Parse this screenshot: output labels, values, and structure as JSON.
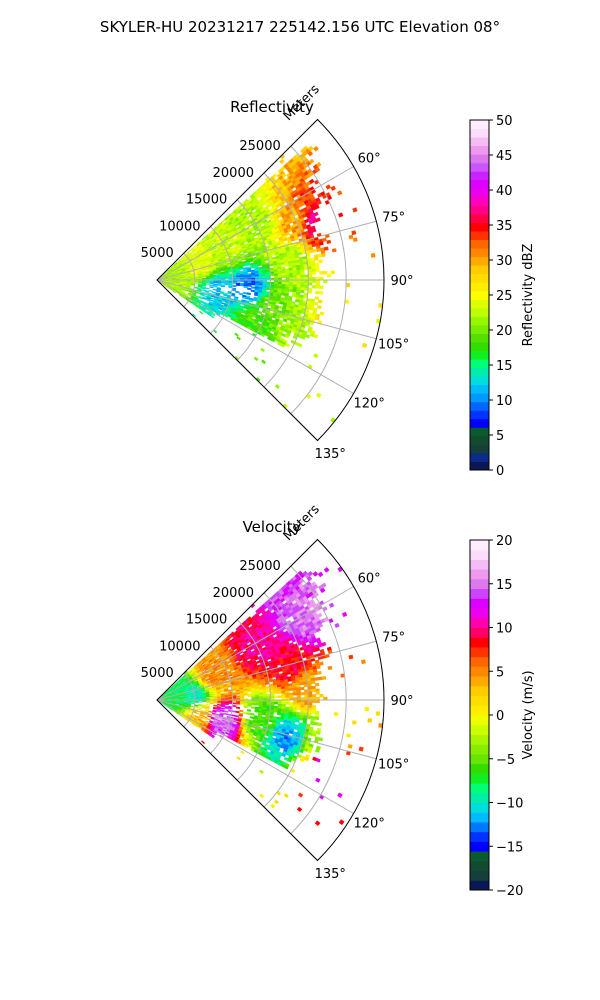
{
  "figure": {
    "suptitle": "SKYLER-HU  20231217  225142.156 UTC Elevation 08°"
  },
  "chart_data": [
    {
      "type": "heatmap",
      "projection": "polar-sector",
      "title": "Reflectivity",
      "radial_axis_label": "Meters",
      "radial_ticks": [
        5000,
        10000,
        15000,
        20000,
        25000
      ],
      "radial_tick_labels": [
        "5000",
        "10000",
        "15000",
        "20000",
        "25000"
      ],
      "radial_max": 30000,
      "theta_range_deg": [
        45,
        135
      ],
      "theta_ticks_deg": [
        60,
        75,
        90,
        105,
        120,
        135
      ],
      "theta_tick_labels": [
        "60°",
        "75°",
        "90°",
        "105°",
        "120°",
        "135°"
      ],
      "grid": true,
      "colorbar": {
        "label": "Reflectivity dBZ",
        "vmin": 0,
        "vmax": 50,
        "ticks": [
          0,
          5,
          10,
          15,
          20,
          25,
          30,
          35,
          40,
          45,
          50
        ],
        "tick_labels": [
          "0",
          "5",
          "10",
          "15",
          "20",
          "25",
          "30",
          "35",
          "40",
          "45",
          "50"
        ],
        "colors": [
          "#0a1855",
          "#0c2a8a",
          "#153f3a",
          "#124a30",
          "#0b5a2e",
          "#0000ff",
          "#0033ff",
          "#0066ff",
          "#0099ff",
          "#00bbff",
          "#00dddd",
          "#00eeaa",
          "#00ff77",
          "#11ee22",
          "#33dd00",
          "#55e000",
          "#77ee00",
          "#99f500",
          "#bbff00",
          "#ddff00",
          "#ffff00",
          "#ffee00",
          "#ffdd00",
          "#ffcc00",
          "#ffaa00",
          "#ff8800",
          "#ff6600",
          "#ff3300",
          "#ff0000",
          "#ff0044",
          "#ff0088",
          "#ff00bb",
          "#ee00ee",
          "#dd00ff",
          "#cc22ff",
          "#cc55ff",
          "#dd77ee",
          "#ee99ee",
          "#f5bbf5",
          "#fbddfb",
          "#ffeeff"
        ]
      },
      "field_samples": [
        {
          "range_m": 3000,
          "azimuth_deg": 80,
          "value": 22
        },
        {
          "range_m": 6000,
          "azimuth_deg": 70,
          "value": 24
        },
        {
          "range_m": 10000,
          "azimuth_deg": 65,
          "value": 23
        },
        {
          "range_m": 15000,
          "azimuth_deg": 62,
          "value": 22
        },
        {
          "range_m": 20000,
          "azimuth_deg": 68,
          "value": 30
        },
        {
          "range_m": 22000,
          "azimuth_deg": 70,
          "value": 37
        },
        {
          "range_m": 24000,
          "azimuth_deg": 72,
          "value": 33
        },
        {
          "range_m": 18000,
          "azimuth_deg": 82,
          "value": 22
        },
        {
          "range_m": 12000,
          "azimuth_deg": 95,
          "value": 10
        },
        {
          "range_m": 8000,
          "azimuth_deg": 100,
          "value": 12
        },
        {
          "range_m": 16000,
          "azimuth_deg": 104,
          "value": 20
        },
        {
          "range_m": 20000,
          "azimuth_deg": 110,
          "value": 22
        },
        {
          "range_m": 23000,
          "azimuth_deg": 105,
          "value": 27
        },
        {
          "range_m": 14000,
          "azimuth_deg": 112,
          "value": 18
        }
      ]
    },
    {
      "type": "heatmap",
      "projection": "polar-sector",
      "title": "Velocity",
      "radial_axis_label": "Meters",
      "radial_ticks": [
        5000,
        10000,
        15000,
        20000,
        25000
      ],
      "radial_tick_labels": [
        "5000",
        "10000",
        "15000",
        "20000",
        "25000"
      ],
      "radial_max": 30000,
      "theta_range_deg": [
        45,
        135
      ],
      "theta_ticks_deg": [
        60,
        75,
        90,
        105,
        120,
        135
      ],
      "theta_tick_labels": [
        "60°",
        "75°",
        "90°",
        "105°",
        "120°",
        "135°"
      ],
      "grid": true,
      "colorbar": {
        "label": "Velocity (m/s)",
        "vmin": -20,
        "vmax": 20,
        "ticks": [
          -20,
          -15,
          -10,
          -5,
          0,
          5,
          10,
          15,
          20
        ],
        "tick_labels": [
          "−20",
          "−15",
          "−10",
          "−5",
          "0",
          "5",
          "10",
          "15",
          "20"
        ],
        "colors": [
          "#0a1855",
          "#153f3a",
          "#124a30",
          "#0b5a2e",
          "#0000ff",
          "#0033ff",
          "#0077ff",
          "#00bbff",
          "#00dddd",
          "#00eeaa",
          "#00ff77",
          "#11ee22",
          "#33dd00",
          "#66e600",
          "#88ee00",
          "#aaf500",
          "#ccff00",
          "#eeff00",
          "#ffee00",
          "#ffdd00",
          "#ffcc00",
          "#ffaa00",
          "#ff8800",
          "#ff6600",
          "#ff3300",
          "#ff0000",
          "#ff0066",
          "#ff00aa",
          "#ee00ee",
          "#dd00ff",
          "#cc44ff",
          "#dd77ee",
          "#ee99ee",
          "#f5bbf5",
          "#fbddfb",
          "#ffeeff"
        ]
      },
      "field_samples": [
        {
          "range_m": 3000,
          "azimuth_deg": 70,
          "value": -8
        },
        {
          "range_m": 5000,
          "azimuth_deg": 85,
          "value": -10
        },
        {
          "range_m": 8000,
          "azimuth_deg": 65,
          "value": 5
        },
        {
          "range_m": 15000,
          "azimuth_deg": 62,
          "value": 10
        },
        {
          "range_m": 22000,
          "azimuth_deg": 60,
          "value": 15
        },
        {
          "range_m": 18000,
          "azimuth_deg": 75,
          "value": 9
        },
        {
          "range_m": 20000,
          "azimuth_deg": 85,
          "value": 4
        },
        {
          "range_m": 6000,
          "azimuth_deg": 110,
          "value": 3
        },
        {
          "range_m": 9000,
          "azimuth_deg": 108,
          "value": 15
        },
        {
          "range_m": 14000,
          "azimuth_deg": 100,
          "value": -6
        },
        {
          "range_m": 18000,
          "azimuth_deg": 106,
          "value": -12
        },
        {
          "range_m": 22000,
          "azimuth_deg": 105,
          "value": -3
        },
        {
          "range_m": 24000,
          "azimuth_deg": 112,
          "value": 14
        }
      ]
    }
  ]
}
